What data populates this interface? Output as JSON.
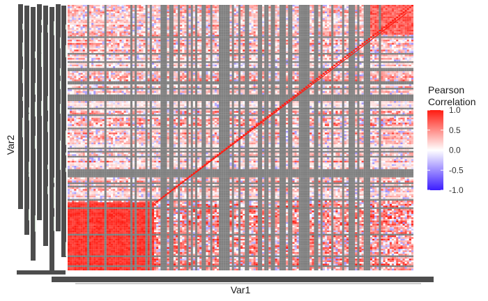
{
  "chart_data": {
    "type": "heatmap",
    "title": "",
    "xlabel": "Var1",
    "ylabel": "Var2",
    "legend": {
      "title_lines": [
        "Pearson",
        "Correlation"
      ],
      "ticks": [
        "1.0",
        "0.5",
        "0.0",
        "-0.5",
        "-1.0"
      ],
      "tick_values": [
        1.0,
        0.5,
        0.0,
        -0.5,
        -1.0
      ],
      "range": [
        -1.0,
        1.0
      ],
      "placement": "right"
    },
    "color_scale": {
      "low": "#3b1cff",
      "mid": "#ffffff",
      "high": "#ff1a10",
      "na": "#808080"
    },
    "colors": {
      "tick_label_ink": "#4d4d4d",
      "axis_line": "#9a9a9a"
    },
    "matrix_description_values": {
      "n_variables_approx": 320,
      "diagonal": 1.0,
      "missing_shown_as": "gray"
    }
  }
}
